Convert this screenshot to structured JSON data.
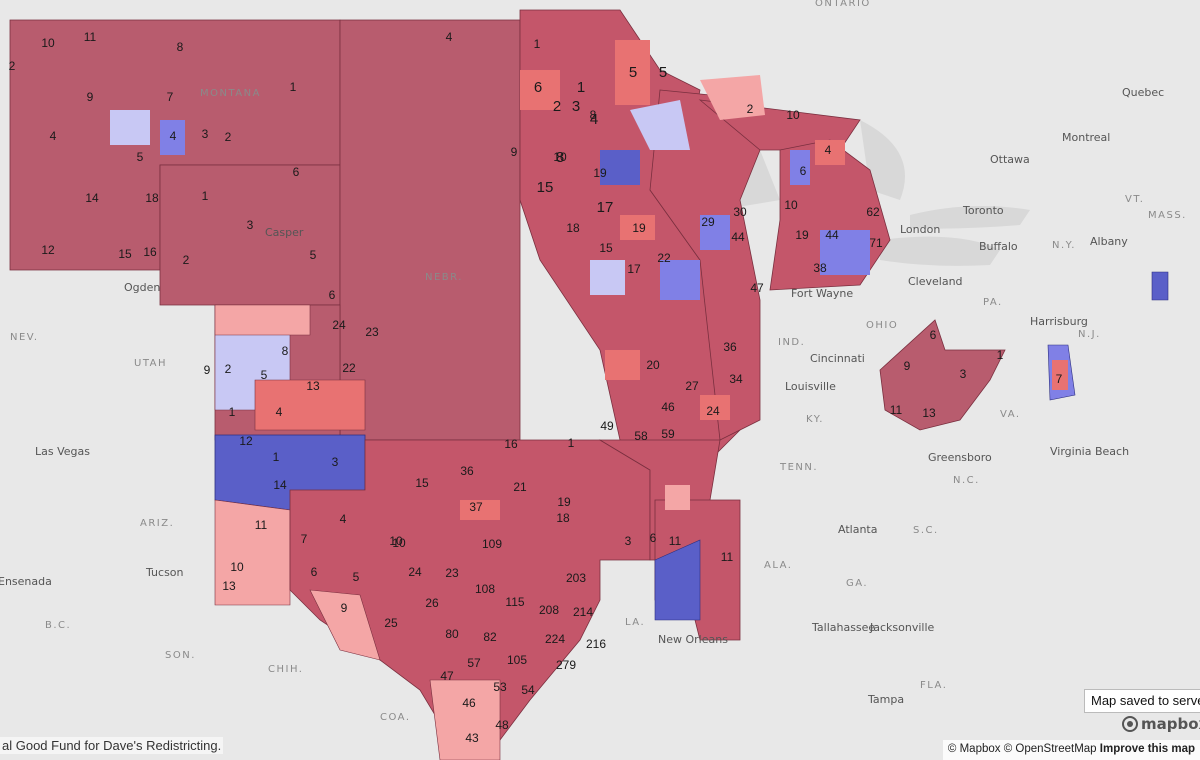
{
  "map": {
    "basemap_labels": {
      "regions": [
        "ONTARIO",
        "MONTANA",
        "NEBR.",
        "OHIO",
        "IND.",
        "KY.",
        "TENN.",
        "N.C.",
        "S.C.",
        "VA.",
        "PA.",
        "N.Y.",
        "VT.",
        "MASS.",
        "N.J.",
        "NEV.",
        "UTAH",
        "ARIZ.",
        "ALA.",
        "GA.",
        "FLA.",
        "LA.",
        "SON.",
        "CHIH.",
        "COA.",
        "B.C."
      ],
      "cities": [
        "Quebec",
        "Montreal",
        "Ottawa",
        "Toronto",
        "London",
        "Buffalo",
        "Albany",
        "Cleveland",
        "Fort Wayne",
        "Harrisburg",
        "Cincinnati",
        "Louisville",
        "Greensboro",
        "Virginia Beach",
        "Atlanta",
        "Tallahassee",
        "Jacksonville",
        "Tampa",
        "New Orleans",
        "Las Vegas",
        "Tucson",
        "Ensenada",
        "Ogden",
        "Casper"
      ]
    },
    "district_numbers": [
      "10",
      "11",
      "8",
      "2",
      "1",
      "7",
      "9",
      "4",
      "3",
      "2",
      "5",
      "6",
      "14",
      "18",
      "12",
      "15",
      "16",
      "4",
      "1",
      "3",
      "2",
      "5",
      "6",
      "4",
      "1",
      "9",
      "8",
      "10",
      "15",
      "17",
      "19",
      "24",
      "23",
      "22",
      "13",
      "8",
      "2",
      "5",
      "4",
      "3",
      "12",
      "14",
      "1",
      "11",
      "7",
      "6",
      "10",
      "9",
      "5",
      "4",
      "1",
      "18",
      "22",
      "17",
      "15",
      "19",
      "29",
      "30",
      "44",
      "36",
      "47",
      "46",
      "58",
      "59",
      "49",
      "24",
      "20",
      "34",
      "27",
      "16",
      "36",
      "37",
      "19",
      "21",
      "18",
      "10",
      "1",
      "3",
      "6",
      "11",
      "13",
      "15",
      "24",
      "10",
      "9",
      "11",
      "25",
      "26",
      "23",
      "109",
      "108",
      "80",
      "82",
      "57",
      "105",
      "115",
      "208",
      "214",
      "203",
      "216",
      "224",
      "279",
      "54",
      "53",
      "43",
      "48",
      "46",
      "47",
      "62",
      "71",
      "44",
      "38",
      "6",
      "4",
      "10",
      "19",
      "13",
      "11",
      "9",
      "3",
      "7",
      "6",
      "1",
      "2",
      "5",
      "5",
      "6",
      "2",
      "3",
      "1",
      "4",
      "8",
      "10",
      "4"
    ],
    "legend_colors": {
      "strong_republican": "#b85c6e",
      "republican": "#c4566a",
      "lean_republican": "#e87272",
      "tilt_republican": "#f4a6a6",
      "tilt_democrat": "#c8c8f4",
      "lean_democrat": "#8080e6",
      "strong_democrat": "#5a5fc8",
      "background": "#e8e8e8"
    }
  },
  "toast": {
    "text": "Map saved to server"
  },
  "branding": {
    "logo_text": "mapbox"
  },
  "footer": {
    "credit": "al Good Fund for Dave's Redistricting.",
    "attribution_mapbox": "© Mapbox",
    "attribution_osm": "© OpenStreetMap",
    "attribution_improve": "Improve this map"
  }
}
